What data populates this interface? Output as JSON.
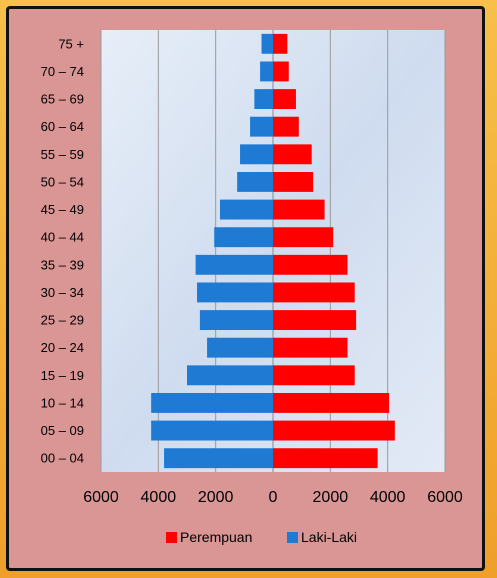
{
  "chart_data": {
    "type": "bar",
    "orientation": "horizontal",
    "categories": [
      "00 – 04",
      "05 – 09",
      "10 – 14",
      "15 – 19",
      "20 – 24",
      "25 – 29",
      "30 – 34",
      "35 – 39",
      "40 – 44",
      "45 – 49",
      "50 – 54",
      "55 – 59",
      "60 – 64",
      "65 – 69",
      "70 – 74",
      "75 +"
    ],
    "series": [
      {
        "name": "Perempuan",
        "color": "#ff0000",
        "values": [
          3650,
          4250,
          4050,
          2850,
          2600,
          2900,
          2850,
          2600,
          2100,
          1800,
          1400,
          1350,
          900,
          800,
          550,
          500
        ]
      },
      {
        "name": "Laki-Laki",
        "color": "#1f7ad4",
        "values": [
          3800,
          4250,
          4250,
          3000,
          2300,
          2550,
          2650,
          2700,
          2050,
          1850,
          1250,
          1150,
          800,
          650,
          450,
          400
        ]
      }
    ],
    "xticks": [
      "6000",
      "4000",
      "2000",
      "0",
      "2000",
      "4000",
      "6000"
    ],
    "xlim": [
      -6000,
      6000
    ],
    "legend": "bottom",
    "grid": true
  }
}
